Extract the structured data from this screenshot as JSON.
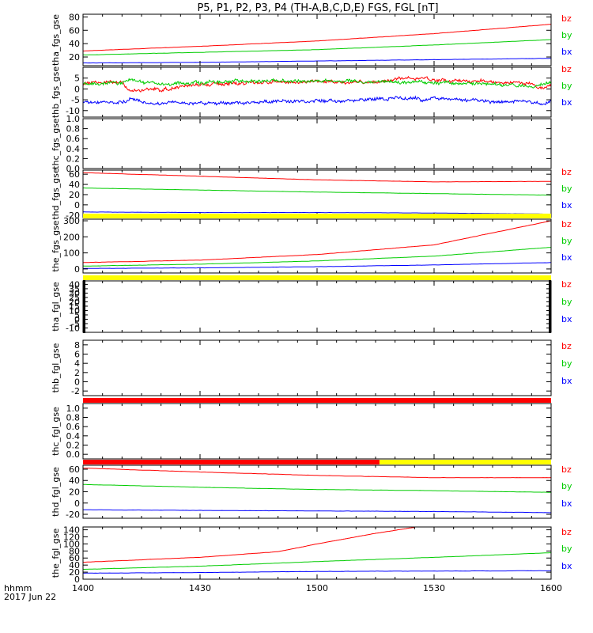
{
  "title": "P5, P1, P2, P3, P4 (TH-A,B,C,D,E) FGS, FGL [nT]",
  "footer": {
    "time_label": "hhmm",
    "date_label": "2017 Jun 22"
  },
  "colors": {
    "bx": "#0000ff",
    "by": "#00cc00",
    "bz": "#ff0000",
    "flag_yellow": "#ffff00",
    "flag_red": "#ff0000",
    "axis": "#000000"
  },
  "chart_data": [
    {
      "type": "line",
      "ylabel": "tha_fgs_gse",
      "ylim": [
        7,
        84
      ],
      "yticks": [
        20,
        40,
        60,
        80
      ],
      "xticks": [
        "1400",
        "1430",
        "1500",
        "1530",
        "1600"
      ],
      "legend": [
        "bz",
        "by",
        "bx"
      ],
      "series": [
        {
          "name": "bz",
          "values": [
            [
              1400,
              29
            ],
            [
              1430,
              36
            ],
            [
              1500,
              44
            ],
            [
              1530,
              55
            ],
            [
              1600,
              69
            ]
          ]
        },
        {
          "name": "by",
          "values": [
            [
              1400,
              23
            ],
            [
              1430,
              27
            ],
            [
              1500,
              31
            ],
            [
              1530,
              38
            ],
            [
              1600,
              46
            ]
          ]
        },
        {
          "name": "bx",
          "values": [
            [
              1400,
              11
            ],
            [
              1430,
              12
            ],
            [
              1500,
              14
            ],
            [
              1530,
              16
            ],
            [
              1600,
              18
            ]
          ]
        }
      ]
    },
    {
      "type": "line",
      "ylabel": "thb_fgs_gse",
      "ylim": [
        -13,
        10
      ],
      "yticks": [
        -10,
        -5,
        0,
        5
      ],
      "xticks": [
        "1400",
        "1430",
        "1500",
        "1530",
        "1600"
      ],
      "legend": [
        "bz",
        "by",
        "bx"
      ],
      "series": [
        {
          "name": "bz",
          "values": [
            [
              1400,
              2.7
            ],
            [
              1410,
              3
            ],
            [
              1412,
              -0.5
            ],
            [
              1420,
              -0.5
            ],
            [
              1430,
              2
            ],
            [
              1445,
              3
            ],
            [
              1500,
              3.5
            ],
            [
              1515,
              3
            ],
            [
              1520,
              4.5
            ],
            [
              1528,
              5
            ],
            [
              1530,
              4
            ],
            [
              1545,
              3.5
            ],
            [
              1555,
              2.5
            ],
            [
              1558,
              0
            ],
            [
              1600,
              2
            ]
          ]
        },
        {
          "name": "by",
          "values": [
            [
              1400,
              2.5
            ],
            [
              1410,
              3
            ],
            [
              1412,
              4.5
            ],
            [
              1420,
              2
            ],
            [
              1430,
              3
            ],
            [
              1445,
              4
            ],
            [
              1500,
              3.5
            ],
            [
              1515,
              3.5
            ],
            [
              1530,
              3
            ],
            [
              1545,
              2.5
            ],
            [
              1555,
              1
            ],
            [
              1600,
              3
            ]
          ]
        },
        {
          "name": "bx",
          "values": [
            [
              1400,
              -6.5
            ],
            [
              1410,
              -6
            ],
            [
              1412,
              -4.5
            ],
            [
              1416,
              -6.5
            ],
            [
              1430,
              -6.5
            ],
            [
              1445,
              -6
            ],
            [
              1500,
              -5.5
            ],
            [
              1515,
              -5
            ],
            [
              1523,
              -4
            ],
            [
              1527,
              -5
            ],
            [
              1530,
              -4
            ],
            [
              1540,
              -5.5
            ],
            [
              1555,
              -6
            ],
            [
              1558,
              -7
            ],
            [
              1600,
              -5
            ]
          ]
        }
      ]
    },
    {
      "type": "line",
      "ylabel": "thc_fgs_gse",
      "ylim": [
        0,
        1.0
      ],
      "yticks": [
        0.0,
        0.2,
        0.4,
        0.6,
        0.8,
        1.0
      ],
      "xticks": [
        "1400",
        "1430",
        "1500",
        "1530",
        "1600"
      ],
      "legend": [],
      "series": []
    },
    {
      "type": "line",
      "ylabel": "thd_fgs_gse",
      "ylim": [
        -25,
        68
      ],
      "yticks": [
        -20,
        0,
        20,
        40,
        60
      ],
      "xticks": [
        "1400",
        "1430",
        "1500",
        "1530",
        "1600"
      ],
      "legend": [
        "bz",
        "by",
        "bx"
      ],
      "series": [
        {
          "name": "bz",
          "values": [
            [
              1400,
              63
            ],
            [
              1430,
              56
            ],
            [
              1500,
              49
            ],
            [
              1530,
              45
            ],
            [
              1600,
              46
            ]
          ]
        },
        {
          "name": "by",
          "values": [
            [
              1400,
              33
            ],
            [
              1430,
              29
            ],
            [
              1500,
              25
            ],
            [
              1530,
              22
            ],
            [
              1600,
              19
            ]
          ]
        },
        {
          "name": "bx",
          "values": [
            [
              1400,
              -14
            ],
            [
              1430,
              -15
            ],
            [
              1500,
              -15
            ],
            [
              1530,
              -16
            ],
            [
              1600,
              -18
            ]
          ]
        }
      ]
    },
    {
      "type": "line",
      "ylabel": "the_fgs_gse",
      "ylim": [
        -25,
        310
      ],
      "yticks": [
        0,
        100,
        200,
        300
      ],
      "xticks": [
        "1400",
        "1430",
        "1500",
        "1530",
        "1600"
      ],
      "legend": [
        "bz",
        "by",
        "bx"
      ],
      "flag_bar": {
        "segments": [
          {
            "from": 1400,
            "to": 1600,
            "color": "yellow"
          }
        ]
      },
      "series": [
        {
          "name": "bz",
          "values": [
            [
              1400,
              40
            ],
            [
              1430,
              55
            ],
            [
              1500,
              90
            ],
            [
              1530,
              150
            ],
            [
              1600,
              300
            ]
          ]
        },
        {
          "name": "by",
          "values": [
            [
              1400,
              18
            ],
            [
              1430,
              30
            ],
            [
              1500,
              50
            ],
            [
              1530,
              80
            ],
            [
              1600,
              135
            ]
          ]
        },
        {
          "name": "bx",
          "values": [
            [
              1400,
              3
            ],
            [
              1430,
              7
            ],
            [
              1500,
              14
            ],
            [
              1530,
              25
            ],
            [
              1600,
              40
            ]
          ]
        }
      ]
    },
    {
      "type": "line",
      "ylabel": "tha_fgl_gse",
      "ylim": [
        -15,
        44
      ],
      "yticks": [
        -10,
        -5,
        0,
        5,
        10,
        15,
        20,
        25,
        30,
        35,
        40
      ],
      "xticks": [
        "1400",
        "1430",
        "1500",
        "1530",
        "1600"
      ],
      "legend": [
        "bz",
        "by",
        "bx"
      ],
      "flag_bar": {
        "segments": [
          {
            "from": 1400,
            "to": 1600,
            "color": "yellow"
          }
        ]
      },
      "series": []
    },
    {
      "type": "line",
      "ylabel": "thb_fgl_gse",
      "ylim": [
        -3,
        9
      ],
      "yticks": [
        -2,
        0,
        2,
        4,
        6,
        8
      ],
      "xticks": [
        "1400",
        "1430",
        "1500",
        "1530",
        "1600"
      ],
      "legend": [
        "bz",
        "by",
        "bx"
      ],
      "series": []
    },
    {
      "type": "line",
      "ylabel": "thc_fgl_gse",
      "ylim": [
        -0.1,
        1.1
      ],
      "yticks": [
        0.0,
        0.2,
        0.4,
        0.6,
        0.8,
        1.0
      ],
      "xticks": [
        "1400",
        "1430",
        "1500",
        "1530",
        "1600"
      ],
      "legend": [],
      "flag_bar": {
        "segments": [
          {
            "from": 1400,
            "to": 1600,
            "color": "red"
          }
        ]
      },
      "series": []
    },
    {
      "type": "line",
      "ylabel": "thd_fgl_gse",
      "ylim": [
        -27,
        67
      ],
      "yticks": [
        -20,
        0,
        20,
        40,
        60
      ],
      "xticks": [
        "1400",
        "1430",
        "1500",
        "1530",
        "1600"
      ],
      "legend": [
        "bz",
        "by",
        "bx"
      ],
      "flag_bar": {
        "segments": [
          {
            "from": 1400,
            "to": 1516,
            "color": "red"
          },
          {
            "from": 1516,
            "to": 1600,
            "color": "yellow"
          }
        ]
      },
      "series": [
        {
          "name": "bz",
          "values": [
            [
              1400,
              62
            ],
            [
              1430,
              55
            ],
            [
              1500,
              49
            ],
            [
              1530,
              45
            ],
            [
              1600,
              45
            ]
          ]
        },
        {
          "name": "by",
          "values": [
            [
              1400,
              33
            ],
            [
              1430,
              28
            ],
            [
              1500,
              24
            ],
            [
              1530,
              22
            ],
            [
              1600,
              19
            ]
          ]
        },
        {
          "name": "bx",
          "values": [
            [
              1400,
              -12
            ],
            [
              1430,
              -13
            ],
            [
              1500,
              -14
            ],
            [
              1530,
              -15
            ],
            [
              1600,
              -17
            ]
          ]
        }
      ]
    },
    {
      "type": "line",
      "ylabel": "the_fgl_gse",
      "ylim": [
        0,
        148
      ],
      "yticks": [
        0,
        20,
        40,
        60,
        80,
        100,
        120,
        140
      ],
      "xticks": [
        "1400",
        "1430",
        "1500",
        "1530",
        "1600"
      ],
      "legend": [
        "bz",
        "by",
        "bx"
      ],
      "series": [
        {
          "name": "bz",
          "values": [
            [
              1400,
              48
            ],
            [
              1430,
              62
            ],
            [
              1450,
              78
            ],
            [
              1500,
              100
            ],
            [
              1515,
              130
            ],
            [
              1525,
              147
            ]
          ]
        },
        {
          "name": "by",
          "values": [
            [
              1400,
              28
            ],
            [
              1430,
              37
            ],
            [
              1500,
              50
            ],
            [
              1530,
              62
            ],
            [
              1600,
              75
            ]
          ]
        },
        {
          "name": "bx",
          "values": [
            [
              1400,
              17
            ],
            [
              1430,
              19
            ],
            [
              1500,
              22
            ],
            [
              1530,
              23
            ],
            [
              1600,
              24
            ]
          ]
        }
      ]
    }
  ]
}
